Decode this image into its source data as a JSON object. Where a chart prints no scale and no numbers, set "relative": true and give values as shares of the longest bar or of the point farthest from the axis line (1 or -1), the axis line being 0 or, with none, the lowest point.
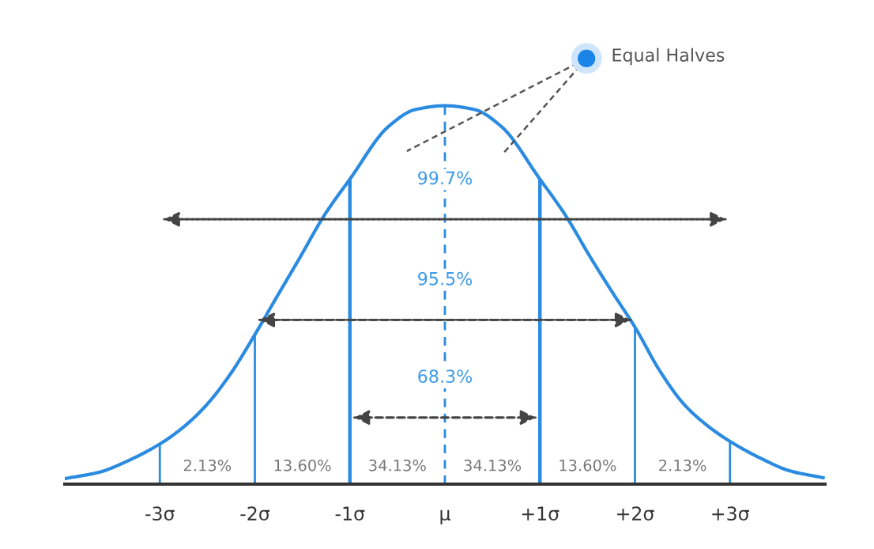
{
  "chart_data": {
    "type": "line",
    "relative": true,
    "x": [
      -3.99,
      -3.63,
      -3.35,
      -3.0,
      -2.76,
      -2.52,
      -2.26,
      -2.0,
      -1.78,
      -1.53,
      -1.27,
      -1.0,
      -0.59,
      -0.31,
      0,
      0.31,
      0.59,
      1.0,
      1.27,
      1.53,
      1.78,
      2.0,
      2.26,
      2.52,
      2.76,
      3.0,
      3.35,
      3.63,
      3.98
    ],
    "series": [
      {
        "color": "#2a8be0",
        "values": [
          0.015,
          0.032,
          0.06,
          0.106,
          0.149,
          0.206,
          0.29,
          0.395,
          0.49,
          0.597,
          0.71,
          0.806,
          0.946,
          0.99,
          1,
          0.99,
          0.946,
          0.806,
          0.71,
          0.6,
          0.5,
          0.415,
          0.3,
          0.21,
          0.155,
          0.113,
          0.065,
          0.035,
          0.017
        ]
      }
    ],
    "xlim": [
      -4,
      4
    ],
    "xticks": [
      {
        "value": -3,
        "label": "-3σ"
      },
      {
        "value": -2,
        "label": "-2σ"
      },
      {
        "value": -1,
        "label": "-1σ"
      },
      {
        "value": 0,
        "label": "μ"
      },
      {
        "value": 1,
        "label": "+1σ"
      },
      {
        "value": 2,
        "label": "+2σ"
      },
      {
        "value": 3,
        "label": "+3σ"
      }
    ],
    "ref_lines": [
      {
        "axis": "x",
        "value": -3,
        "color": "#2a8be0"
      },
      {
        "axis": "x",
        "value": -2,
        "color": "#2a8be0"
      },
      {
        "axis": "x",
        "value": -1,
        "color": "#2a8be0"
      },
      {
        "axis": "x",
        "value": 0,
        "color": "#2a8be0",
        "line_style": "dashed"
      },
      {
        "axis": "x",
        "value": 1,
        "color": "#2a8be0"
      },
      {
        "axis": "x",
        "value": 2,
        "color": "#2a8be0"
      },
      {
        "axis": "x",
        "value": 3,
        "color": "#2a8be0"
      }
    ],
    "annotations": [
      "99.7%",
      "95.5%",
      "68.3%",
      "2.13%",
      "13.60%",
      "34.13%",
      "34.13%",
      "13.60%",
      "2.13%",
      "Equal Halves"
    ],
    "grid": false,
    "legend": false,
    "marker": "none",
    "line_style": "solid"
  }
}
